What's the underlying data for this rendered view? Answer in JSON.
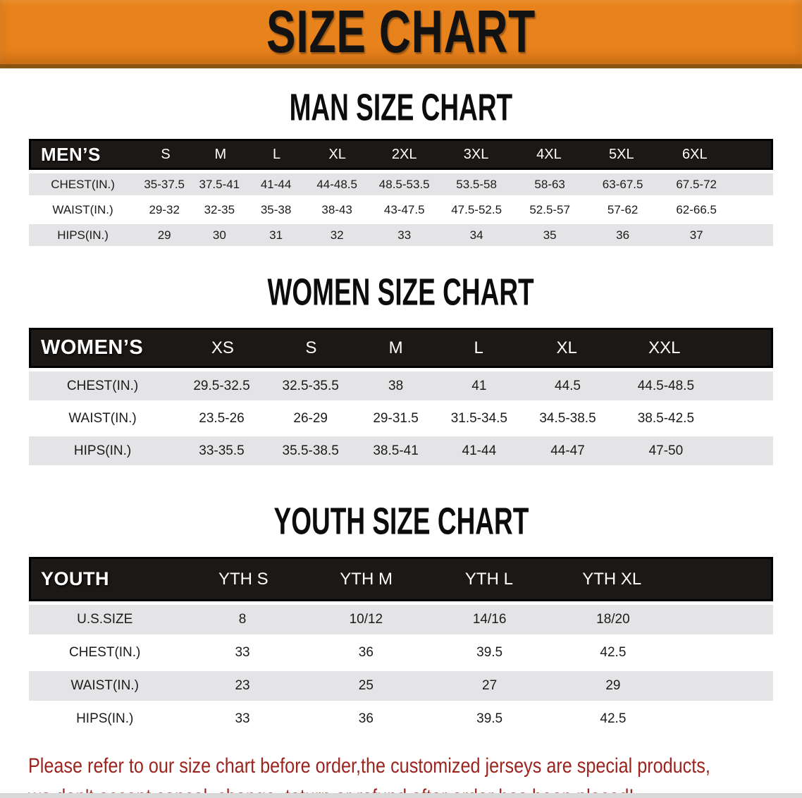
{
  "banner": {
    "title": "SIZE CHART",
    "bg_color": "#e8821c"
  },
  "sections": [
    {
      "title": "MAN SIZE CHART",
      "header_label": "MEN’S",
      "columns": [
        "S",
        "M",
        "L",
        "XL",
        "2XL",
        "3XL",
        "4XL",
        "5XL",
        "6XL"
      ],
      "rows": [
        {
          "label": "CHEST(IN.)",
          "values": [
            "35-37.5",
            "37.5-41",
            "41-44",
            "44-48.5",
            "48.5-53.5",
            "53.5-58",
            "58-63",
            "63-67.5",
            "67.5-72"
          ]
        },
        {
          "label": "WAIST(IN.)",
          "values": [
            "29-32",
            "32-35",
            "35-38",
            "38-43",
            "43-47.5",
            "47.5-52.5",
            "52.5-57",
            "57-62",
            "62-66.5"
          ]
        },
        {
          "label": "HIPS(IN.)",
          "values": [
            "29",
            "30",
            "31",
            "32",
            "33",
            "34",
            "35",
            "36",
            "37"
          ]
        }
      ]
    },
    {
      "title": "WOMEN SIZE CHART",
      "header_label": "WOMEN’S",
      "columns": [
        "XS",
        "S",
        "M",
        "L",
        "XL",
        "XXL"
      ],
      "rows": [
        {
          "label": "CHEST(IN.)",
          "values": [
            "29.5-32.5",
            "32.5-35.5",
            "38",
            "41",
            "44.5",
            "44.5-48.5"
          ]
        },
        {
          "label": "WAIST(IN.)",
          "values": [
            "23.5-26",
            "26-29",
            "29-31.5",
            "31.5-34.5",
            "34.5-38.5",
            "38.5-42.5"
          ]
        },
        {
          "label": "HIPS(IN.)",
          "values": [
            "33-35.5",
            "35.5-38.5",
            "38.5-41",
            "41-44",
            "44-47",
            "47-50"
          ]
        }
      ]
    },
    {
      "title": "YOUTH SIZE CHART",
      "header_label": "YOUTH",
      "columns": [
        "YTH S",
        "YTH M",
        "YTH L",
        "YTH XL"
      ],
      "rows": [
        {
          "label": "U.S.SIZE",
          "values": [
            "8",
            "10/12",
            "14/16",
            "18/20"
          ]
        },
        {
          "label": "CHEST(IN.)",
          "values": [
            "33",
            "36",
            "39.5",
            "42.5"
          ]
        },
        {
          "label": "WAIST(IN.)",
          "values": [
            "23",
            "25",
            "27",
            "29"
          ]
        },
        {
          "label": "HIPS(IN.)",
          "values": [
            "33",
            "36",
            "39.5",
            "42.5"
          ]
        }
      ]
    }
  ],
  "footer_note": {
    "line1": "Please refer to our size chart before order,the customized jerseys are special products,",
    "line2": "we don't accept cancel, change, teturn or refund after order has been placed!",
    "color": "#9c241e"
  },
  "colors": {
    "banner_orange": "#e8821c",
    "header_black": "#1c1816",
    "row_stripe_gray": "#e4e4e6",
    "note_red": "#9c241e"
  }
}
